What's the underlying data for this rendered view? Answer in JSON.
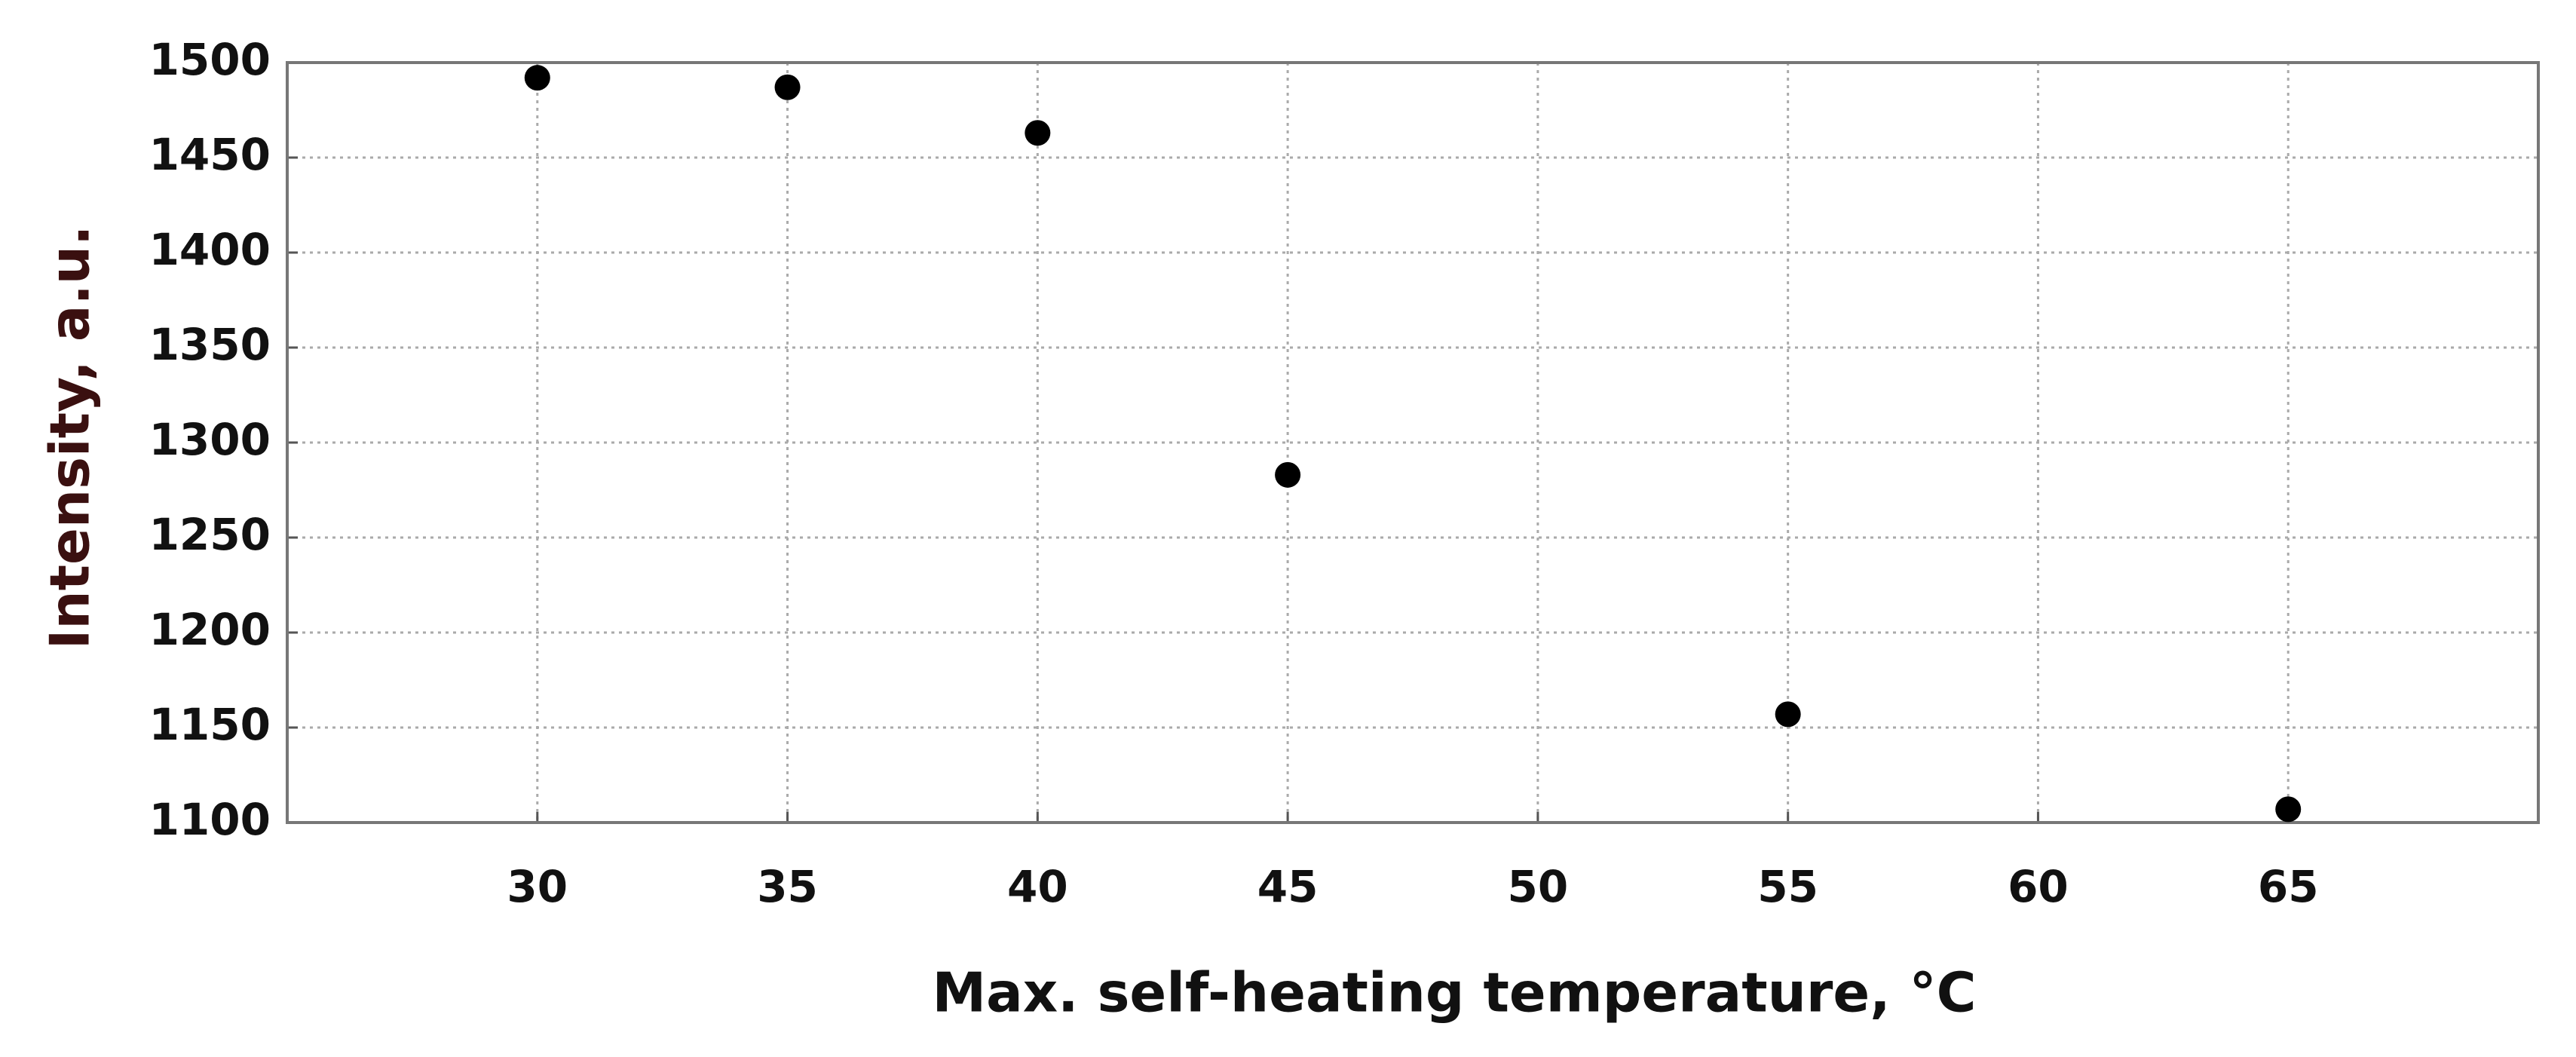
{
  "chart_data": {
    "type": "scatter",
    "x_label": "Max. self-heating temperature, °C",
    "y_label": "Intensity, a.u.",
    "x": [
      30,
      35,
      40,
      45,
      55,
      65
    ],
    "values": [
      1492,
      1487,
      1463,
      1283,
      1157,
      1107
    ],
    "color": "#000000",
    "xlim": [
      25,
      70
    ],
    "xticks": [
      30,
      35,
      40,
      45,
      50,
      55,
      60,
      65
    ],
    "ylim": [
      1100,
      1500
    ],
    "yticks": [
      1100,
      1150,
      1200,
      1250,
      1300,
      1350,
      1400,
      1450,
      1500
    ],
    "grid": true
  }
}
